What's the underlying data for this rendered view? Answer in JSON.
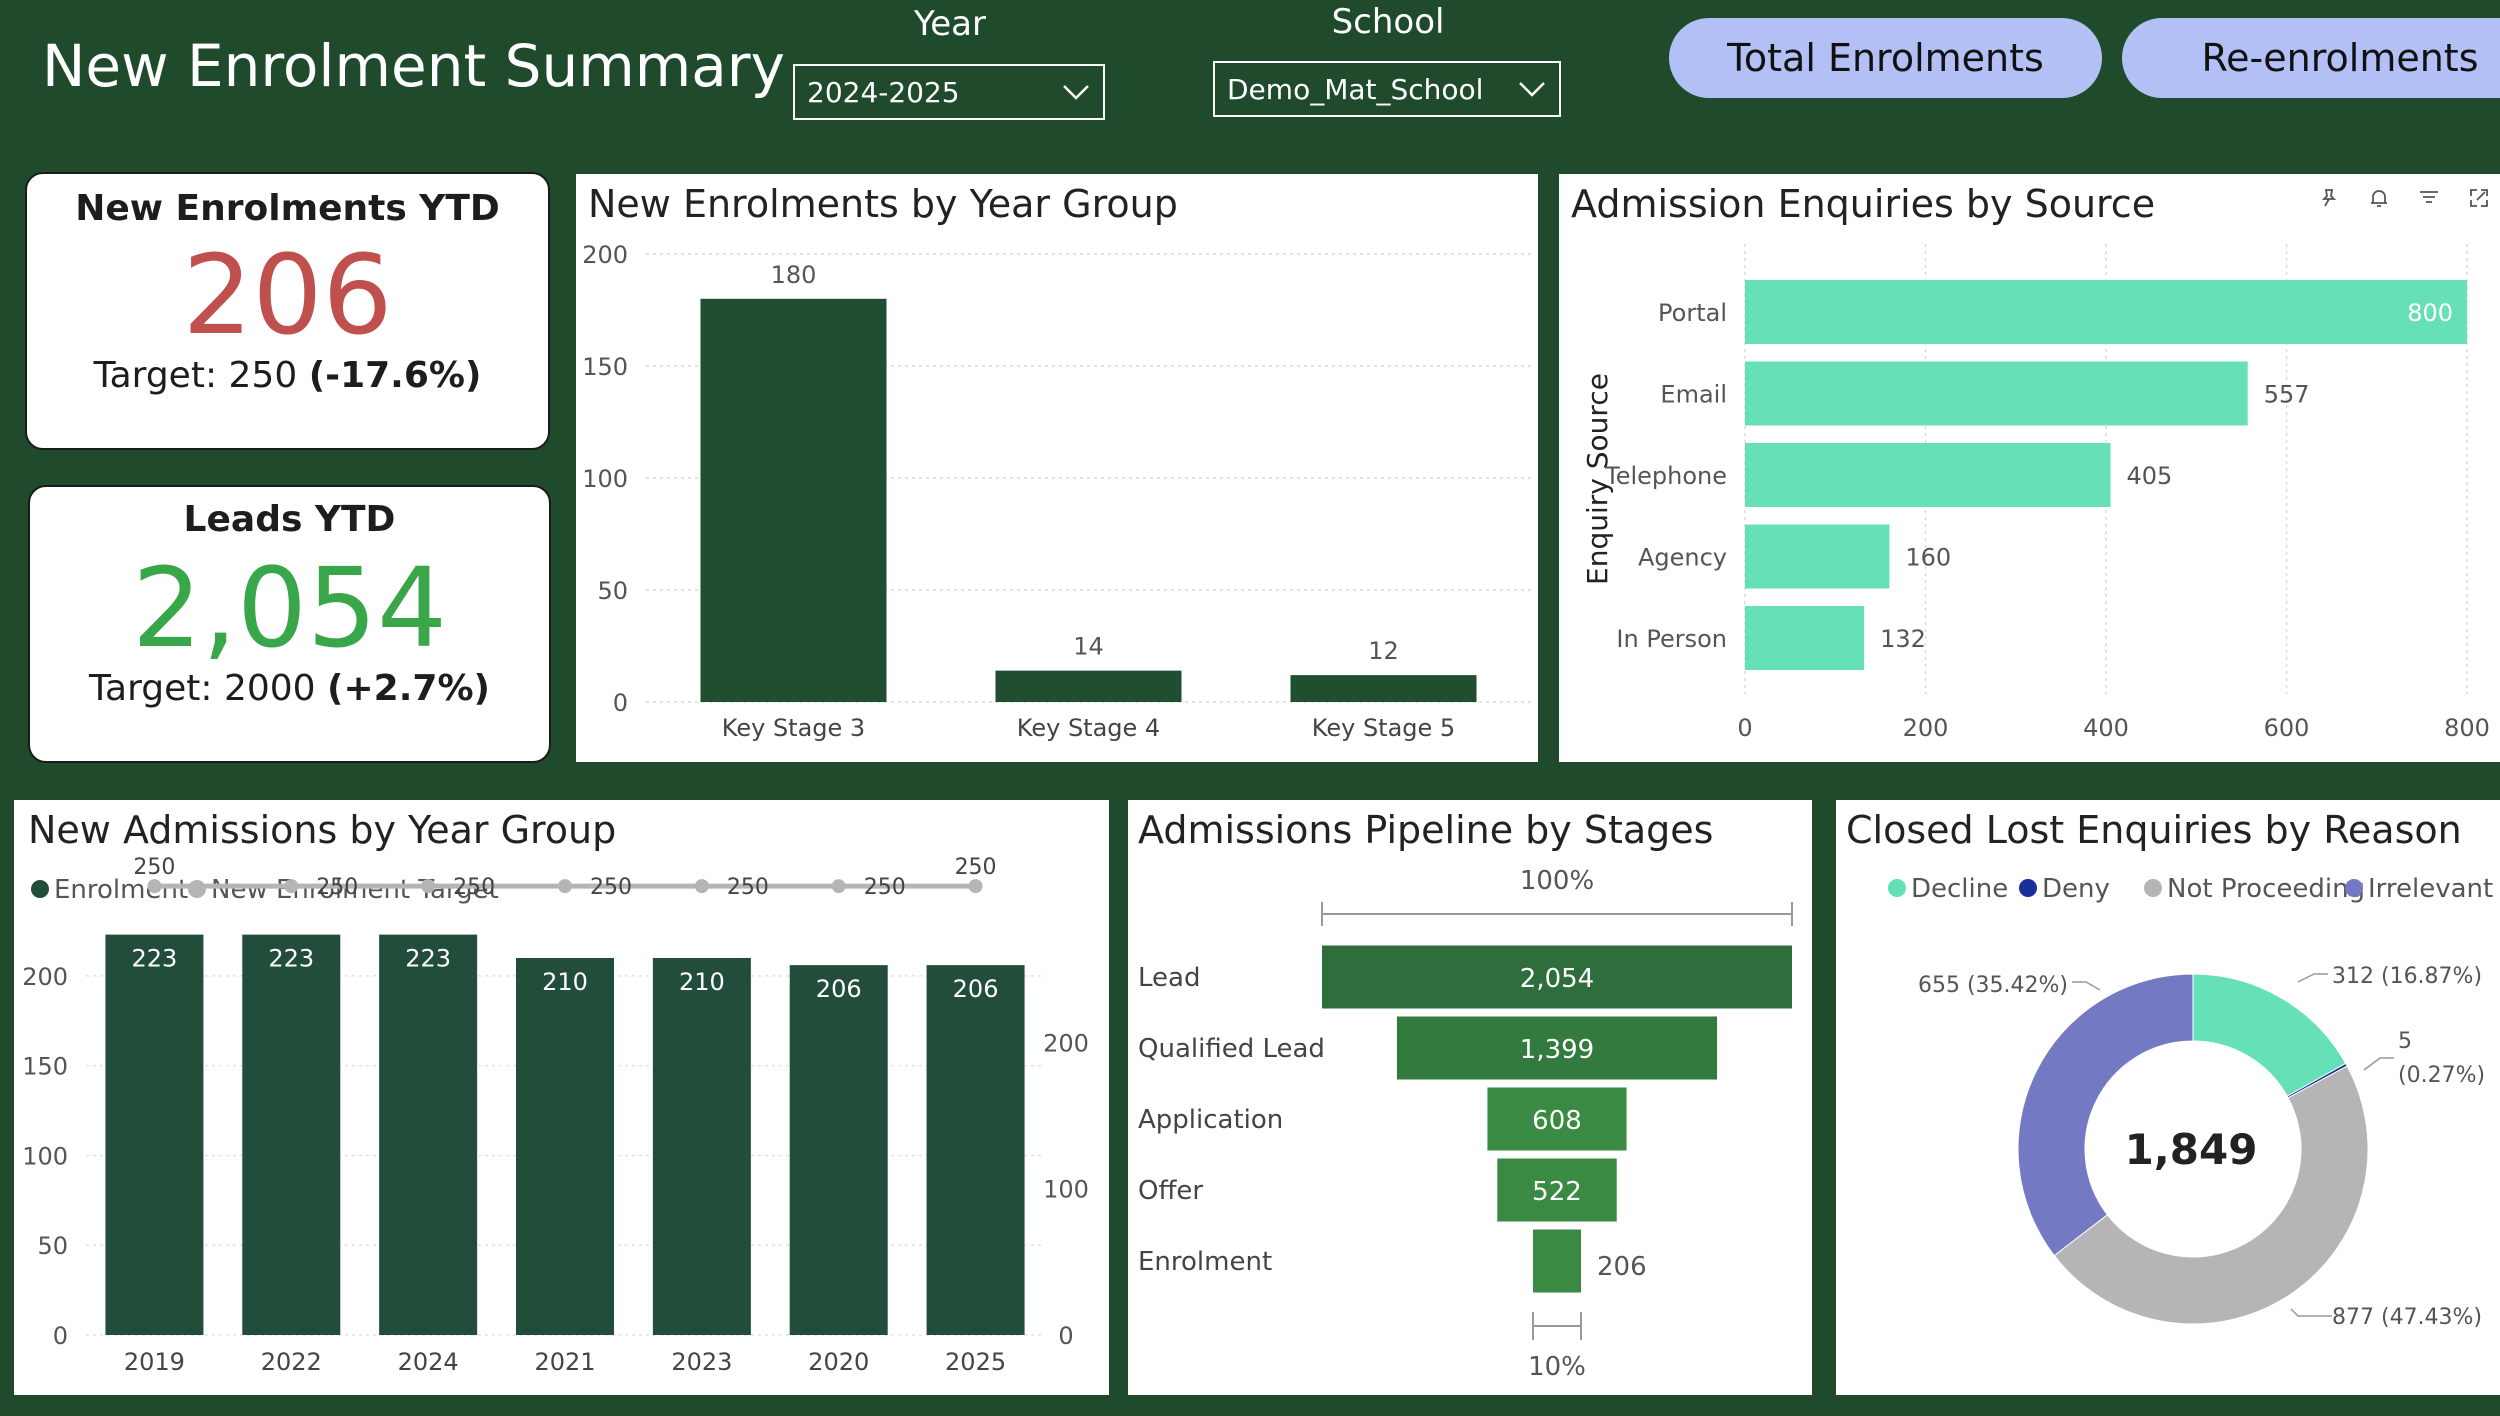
{
  "header": {
    "title": "New Enrolment Summary",
    "year_label": "Year",
    "year_value": "2024-2025",
    "school_label": "School",
    "school_value": "Demo_Mat_School",
    "btn_total": "Total Enrolments",
    "btn_reenrol": "Re-enrolments"
  },
  "kpi_enrol": {
    "title": "New Enrolments YTD",
    "value": "206",
    "target": "Target: 250",
    "delta": "(-17.6%)",
    "color": "#c0504d"
  },
  "kpi_leads": {
    "title": "Leads YTD",
    "value": "2,054",
    "target": "Target: 2000",
    "delta": "(+2.7%)",
    "color": "#3aa64a"
  },
  "chart_data": [
    {
      "type": "bar",
      "title": "New Enrolments by Year Group",
      "categories": [
        "Key Stage 3",
        "Key Stage 4",
        "Key Stage 5"
      ],
      "values": [
        180,
        14,
        12
      ],
      "ylim": [
        0,
        200
      ],
      "yticks": [
        0,
        50,
        100,
        150,
        200
      ],
      "color": "#1f4f30"
    },
    {
      "type": "bar",
      "orientation": "horizontal",
      "title": "Admission Enquiries by Source",
      "ylabel": "Enquiry Source",
      "categories": [
        "Portal",
        "Email",
        "Telephone",
        "Agency",
        "In Person"
      ],
      "values": [
        800,
        557,
        405,
        160,
        132
      ],
      "xlim": [
        0,
        800
      ],
      "xticks": [
        0,
        200,
        400,
        600,
        800
      ],
      "color": "#66e0b6"
    },
    {
      "type": "bar",
      "title": "New Admissions by Year Group",
      "categories": [
        "2019",
        "2022",
        "2024",
        "2021",
        "2023",
        "2020",
        "2025"
      ],
      "series": [
        {
          "name": "Enrolment",
          "values": [
            223,
            223,
            223,
            210,
            210,
            206,
            206
          ],
          "color": "#214d3a"
        },
        {
          "name": "New Enrolment Target",
          "type": "line",
          "values": [
            250,
            250,
            250,
            250,
            250,
            250,
            250
          ],
          "color": "#b5b5b5"
        }
      ],
      "ylim": [
        0,
        220
      ],
      "yticks": [
        0,
        50,
        100,
        150,
        200
      ],
      "y2ticks": [
        0,
        100,
        200
      ],
      "legend": "top-left"
    },
    {
      "type": "funnel",
      "title": "Admissions Pipeline by Stages",
      "categories": [
        "Lead",
        "Qualified Lead",
        "Application",
        "Offer",
        "Enrolment"
      ],
      "values": [
        2054,
        1399,
        608,
        522,
        206
      ],
      "labels": [
        "2,054",
        "1,399",
        "608",
        "522",
        "206"
      ],
      "top_pct": "100%",
      "bottom_pct": "10%",
      "colors": [
        "#2e6e3c",
        "#327a3e",
        "#3a8a44",
        "#3a8a44",
        "#3a8a44"
      ]
    },
    {
      "type": "pie",
      "title": "Closed Lost Enquiries by Reason",
      "categories": [
        "Decline",
        "Deny",
        "Not Proceeding",
        "Irrelevant"
      ],
      "values": [
        312,
        5,
        877,
        655
      ],
      "labels": [
        "312 (16.87%)",
        "5 (0.27%)",
        "877 (47.43%)",
        "655 (35.42%)"
      ],
      "colors": [
        "#66e0b6",
        "#1a2d9a",
        "#b5b5b5",
        "#7479c4"
      ],
      "center_label": "1,849",
      "legend": "top"
    }
  ]
}
